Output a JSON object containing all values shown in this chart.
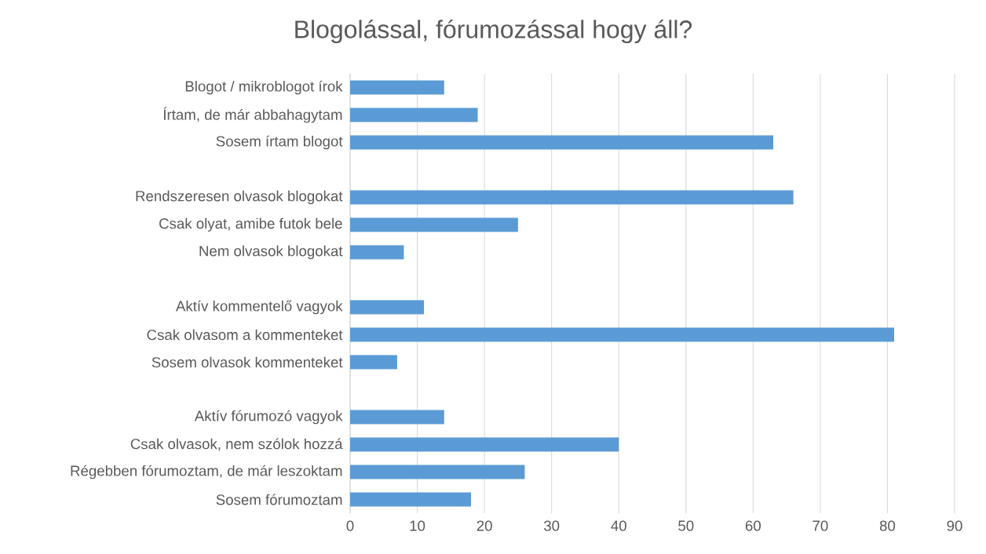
{
  "chart_data": {
    "type": "bar",
    "orientation": "horizontal",
    "title": "Blogolással, fórumozással hogy áll?",
    "categories": [
      "Blogot / mikroblogot írok",
      "Írtam, de már abbahagytam",
      "Sosem írtam blogot",
      null,
      "Rendszeresen olvasok blogokat",
      "Csak olyat, amibe futok bele",
      "Nem olvasok blogokat",
      null,
      "Aktív kommentelő vagyok",
      "Csak olvasom a kommenteket",
      "Sosem olvasok kommenteket",
      null,
      "Aktív fórumozó vagyok",
      "Csak olvasok, nem szólok hozzá",
      "Régebben fórumoztam, de már leszoktam",
      "Sosem fórumoztam"
    ],
    "values": [
      14,
      19,
      63,
      null,
      66,
      25,
      8,
      null,
      11,
      81,
      7,
      null,
      14,
      40,
      26,
      18
    ],
    "color": "#5b9bd5",
    "xlim": [
      0,
      90
    ],
    "xticks": [
      0,
      10,
      20,
      30,
      40,
      50,
      60,
      70,
      80,
      90
    ],
    "grid": "x"
  }
}
